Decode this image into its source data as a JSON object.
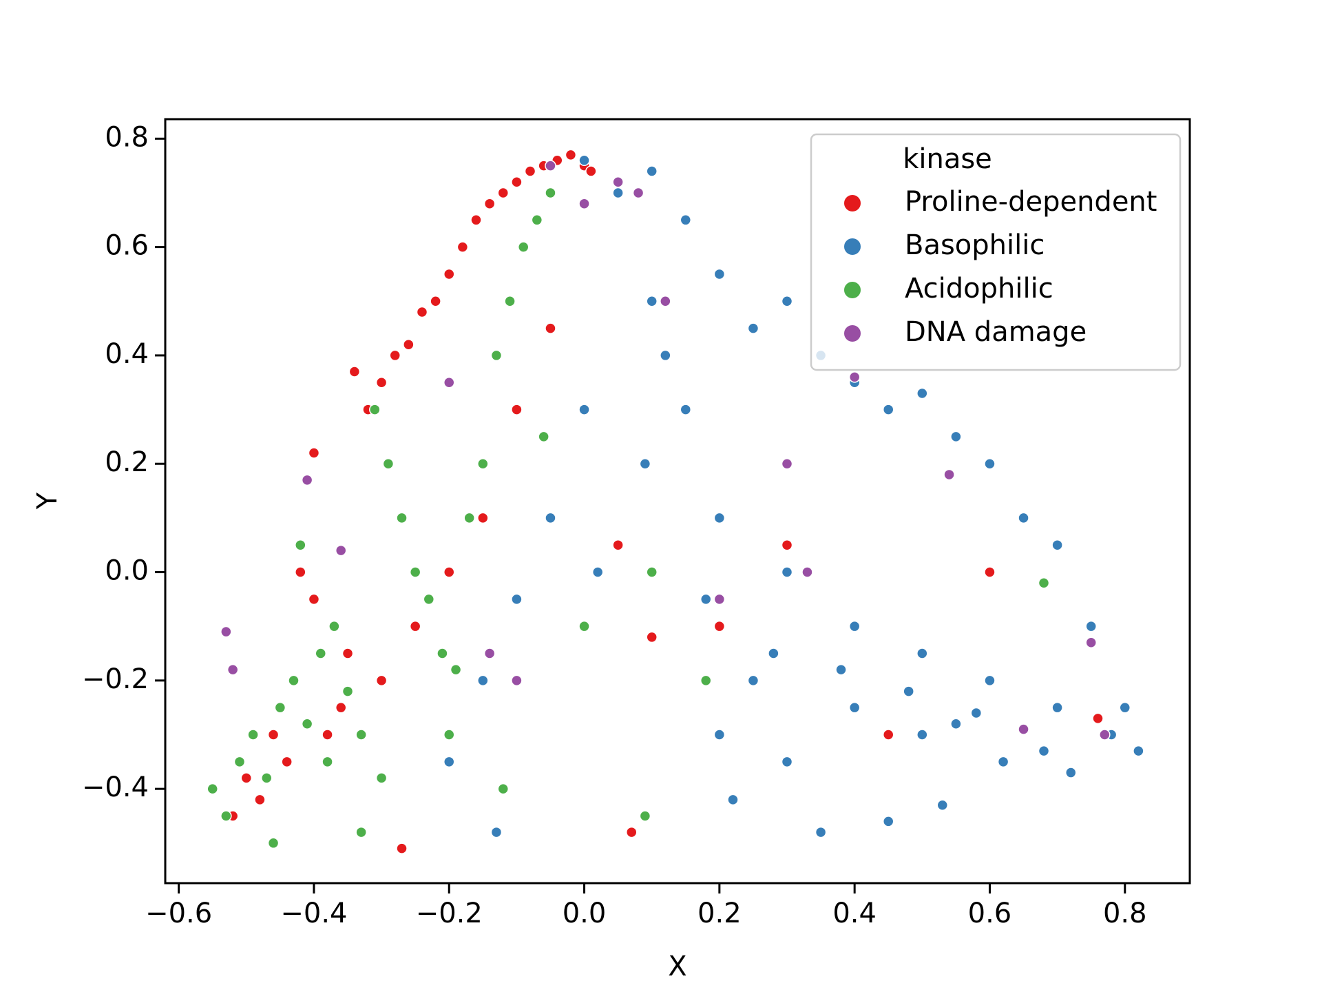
{
  "chart_data": {
    "type": "scatter",
    "x_label": "X",
    "y_label": "Y",
    "legend_title": "kinase",
    "legend": "upper right",
    "xlim": [
      -0.62,
      0.896
    ],
    "ylim": [
      -0.574,
      0.836
    ],
    "xticks": [
      {
        "value": -0.6,
        "label": "−0.6"
      },
      {
        "value": -0.4,
        "label": "−0.4"
      },
      {
        "value": -0.2,
        "label": "−0.2"
      },
      {
        "value": 0,
        "label": "0.0"
      },
      0.2,
      0.4,
      0.6,
      0.8
    ],
    "yticks": [
      {
        "value": -0.4,
        "label": "−0.4"
      },
      {
        "value": -0.2,
        "label": "−0.2"
      },
      {
        "value": 0,
        "label": "0.0"
      },
      0.2,
      0.4,
      0.6,
      0.8
    ],
    "series": [
      {
        "name": "Proline-dependent",
        "color": "#e41a1c",
        "x": [
          -0.52,
          -0.5,
          -0.48,
          -0.46,
          -0.44,
          -0.42,
          -0.4,
          -0.38,
          -0.36,
          -0.34,
          -0.32,
          -0.3,
          -0.28,
          -0.26,
          -0.24,
          -0.22,
          -0.2,
          -0.18,
          -0.16,
          -0.14,
          -0.12,
          -0.1,
          -0.08,
          -0.06,
          -0.04,
          -0.02,
          0.0,
          0.01,
          -0.3,
          -0.25,
          -0.2,
          -0.15,
          -0.1,
          -0.05,
          0.05,
          0.1,
          0.2,
          0.3,
          0.6,
          0.76,
          -0.27,
          0.07,
          0.45,
          -0.35,
          -0.4
        ],
        "values": [
          -0.45,
          -0.38,
          -0.42,
          -0.3,
          -0.35,
          0.0,
          0.22,
          -0.3,
          -0.25,
          0.37,
          0.3,
          0.35,
          0.4,
          0.42,
          0.48,
          0.5,
          0.55,
          0.6,
          0.65,
          0.68,
          0.7,
          0.72,
          0.74,
          0.75,
          0.76,
          0.77,
          0.75,
          0.74,
          -0.2,
          -0.1,
          0.0,
          0.1,
          0.3,
          0.45,
          0.05,
          -0.12,
          -0.1,
          0.05,
          0.0,
          -0.27,
          -0.51,
          -0.48,
          -0.3,
          -0.15,
          -0.05
        ]
      },
      {
        "name": "Basophilic",
        "color": "#377eb8",
        "x": [
          0.0,
          0.05,
          0.1,
          0.15,
          0.2,
          0.25,
          0.3,
          0.35,
          0.4,
          0.45,
          0.5,
          0.55,
          0.6,
          0.65,
          0.7,
          0.75,
          0.8,
          0.82,
          0.1,
          0.15,
          0.2,
          0.3,
          0.4,
          0.5,
          0.6,
          0.7,
          0.78,
          0.09,
          0.12,
          0.18,
          0.28,
          0.38,
          0.48,
          0.58,
          0.68,
          0.0,
          -0.05,
          -0.1,
          -0.15,
          -0.2,
          0.2,
          0.3,
          0.4,
          0.5,
          0.55,
          0.62,
          0.72,
          0.35,
          0.45,
          0.25,
          -0.13,
          0.22,
          0.53,
          0.02
        ],
        "values": [
          0.76,
          0.7,
          0.74,
          0.65,
          0.55,
          0.45,
          0.5,
          0.4,
          0.35,
          0.3,
          0.33,
          0.25,
          0.2,
          0.1,
          0.05,
          -0.1,
          -0.25,
          -0.33,
          0.5,
          0.3,
          0.1,
          0.0,
          -0.1,
          -0.15,
          -0.2,
          -0.25,
          -0.3,
          0.2,
          0.4,
          -0.05,
          -0.15,
          -0.18,
          -0.22,
          -0.26,
          -0.33,
          0.3,
          0.1,
          -0.05,
          -0.2,
          -0.35,
          -0.3,
          -0.35,
          -0.25,
          -0.3,
          -0.28,
          -0.35,
          -0.37,
          -0.48,
          -0.46,
          -0.2,
          -0.48,
          -0.42,
          -0.43,
          0.0
        ]
      },
      {
        "name": "Acidophilic",
        "color": "#4daf4a",
        "x": [
          -0.55,
          -0.53,
          -0.51,
          -0.49,
          -0.47,
          -0.45,
          -0.43,
          -0.41,
          -0.39,
          -0.37,
          -0.35,
          -0.33,
          -0.31,
          -0.29,
          -0.27,
          -0.25,
          -0.23,
          -0.21,
          -0.19,
          -0.17,
          -0.15,
          -0.13,
          -0.11,
          -0.09,
          -0.07,
          -0.05,
          -0.46,
          -0.42,
          -0.38,
          -0.3,
          -0.2,
          -0.1,
          0.0,
          0.1,
          0.18,
          0.68,
          0.09,
          -0.33,
          -0.12,
          -0.06
        ],
        "values": [
          -0.4,
          -0.45,
          -0.35,
          -0.3,
          -0.38,
          -0.25,
          -0.2,
          -0.28,
          -0.15,
          -0.1,
          -0.22,
          -0.3,
          0.3,
          0.2,
          0.1,
          0.0,
          -0.05,
          -0.15,
          -0.18,
          0.1,
          0.2,
          0.4,
          0.5,
          0.6,
          0.65,
          0.7,
          -0.5,
          0.05,
          -0.35,
          -0.38,
          -0.3,
          -0.2,
          -0.1,
          0.0,
          -0.2,
          -0.02,
          -0.45,
          -0.48,
          -0.4,
          0.25
        ]
      },
      {
        "name": "DNA damage",
        "color": "#984ea3",
        "x": [
          -0.53,
          -0.52,
          -0.41,
          -0.36,
          -0.2,
          -0.1,
          -0.05,
          0.0,
          0.05,
          0.08,
          0.12,
          0.2,
          0.3,
          0.4,
          0.54,
          0.65,
          0.75,
          0.77,
          -0.14,
          0.33
        ],
        "values": [
          -0.11,
          -0.18,
          0.17,
          0.04,
          0.35,
          -0.2,
          0.75,
          0.68,
          0.72,
          0.7,
          0.5,
          -0.05,
          0.2,
          0.36,
          0.18,
          -0.29,
          -0.13,
          -0.3,
          -0.15,
          0.0
        ]
      }
    ]
  }
}
